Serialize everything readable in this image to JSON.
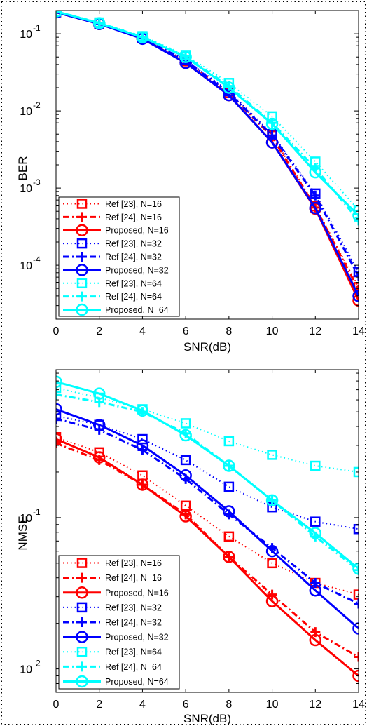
{
  "chart_data": [
    {
      "type": "line",
      "xlabel": "SNR(dB)",
      "ylabel": "BER",
      "yscale": "log",
      "xlim": [
        0,
        14
      ],
      "ylim": [
        2e-05,
        0.2
      ],
      "x_ticks": [
        0,
        2,
        4,
        6,
        8,
        10,
        12,
        14
      ],
      "x_tick_labels": [
        "0",
        "2",
        "4",
        "6",
        "8",
        "10",
        "12",
        "14"
      ],
      "y_ticks": [
        0.0001,
        0.001,
        0.01,
        0.1
      ],
      "y_tick_labels": [
        {
          "base": "10",
          "exp": "-4"
        },
        {
          "base": "10",
          "exp": "-3"
        },
        {
          "base": "10",
          "exp": "-2"
        },
        {
          "base": "10",
          "exp": "-1"
        }
      ],
      "grid": false,
      "legend_position": "bottom-left",
      "x": [
        0,
        2,
        4,
        6,
        8,
        10,
        12,
        14
      ],
      "series": [
        {
          "name": "Ref [23], N=16",
          "color": "#ff0000",
          "line": "dotted",
          "marker": "square",
          "values": [
            0.19,
            0.135,
            0.088,
            0.044,
            0.017,
            0.0048,
            0.00058,
            5.2e-05
          ]
        },
        {
          "name": "Ref [24], N=16",
          "color": "#ff0000",
          "line": "dashdot",
          "marker": "plus",
          "values": [
            0.19,
            0.135,
            0.088,
            0.044,
            0.017,
            0.0046,
            0.00056,
            4.8e-05
          ]
        },
        {
          "name": "Proposed, N=16",
          "color": "#ff0000",
          "line": "solid",
          "marker": "circle",
          "values": [
            0.19,
            0.134,
            0.087,
            0.042,
            0.016,
            0.0039,
            0.00054,
            3.5e-05
          ]
        },
        {
          "name": "Ref [23], N=32",
          "color": "#0000ff",
          "line": "dotted",
          "marker": "square",
          "values": [
            0.19,
            0.136,
            0.089,
            0.046,
            0.018,
            0.005,
            0.00085,
            8.2e-05
          ]
        },
        {
          "name": "Ref [24], N=32",
          "color": "#0000ff",
          "line": "dashdot",
          "marker": "plus",
          "values": [
            0.19,
            0.135,
            0.088,
            0.045,
            0.017,
            0.0048,
            0.0008,
            7.2e-05
          ]
        },
        {
          "name": "Proposed, N=32",
          "color": "#0000ff",
          "line": "solid",
          "marker": "circle",
          "values": [
            0.19,
            0.134,
            0.086,
            0.042,
            0.016,
            0.0039,
            0.00055,
            4e-05
          ]
        },
        {
          "name": "Ref [23], N=64",
          "color": "#00ffff",
          "line": "dotted",
          "marker": "square",
          "values": [
            0.195,
            0.14,
            0.093,
            0.053,
            0.023,
            0.0085,
            0.0022,
            0.00052
          ]
        },
        {
          "name": "Ref [24], N=64",
          "color": "#00ffff",
          "line": "dashdot",
          "marker": "plus",
          "values": [
            0.195,
            0.138,
            0.091,
            0.051,
            0.021,
            0.007,
            0.0018,
            0.00038
          ]
        },
        {
          "name": "Proposed, N=64",
          "color": "#00ffff",
          "line": "solid",
          "marker": "circle",
          "values": [
            0.195,
            0.137,
            0.09,
            0.05,
            0.02,
            0.0068,
            0.0016,
            0.00044
          ]
        }
      ]
    },
    {
      "type": "line",
      "xlabel": "SNR(dB)",
      "ylabel": "NMSE",
      "yscale": "log",
      "xlim": [
        0,
        14
      ],
      "ylim": [
        0.007,
        0.95
      ],
      "x_ticks": [
        0,
        2,
        4,
        6,
        8,
        10,
        12,
        14
      ],
      "x_tick_labels": [
        "0",
        "2",
        "4",
        "6",
        "8",
        "10",
        "12",
        "14"
      ],
      "y_ticks": [
        0.01,
        0.1
      ],
      "y_tick_labels": [
        {
          "base": "10",
          "exp": "-2"
        },
        {
          "base": "10",
          "exp": "-1"
        }
      ],
      "grid": false,
      "legend_position": "bottom-left",
      "x": [
        0,
        2,
        4,
        6,
        8,
        10,
        12,
        14
      ],
      "series": [
        {
          "name": "Ref [23], N=16",
          "color": "#ff0000",
          "line": "dotted",
          "marker": "square",
          "values": [
            0.34,
            0.27,
            0.19,
            0.12,
            0.075,
            0.05,
            0.037,
            0.031
          ]
        },
        {
          "name": "Ref [24], N=16",
          "color": "#ff0000",
          "line": "dashdot",
          "marker": "plus",
          "values": [
            0.31,
            0.24,
            0.165,
            0.105,
            0.055,
            0.031,
            0.0175,
            0.012
          ]
        },
        {
          "name": "Proposed, N=16",
          "color": "#ff0000",
          "line": "solid",
          "marker": "circle",
          "values": [
            0.33,
            0.25,
            0.165,
            0.102,
            0.055,
            0.028,
            0.0155,
            0.009
          ]
        },
        {
          "name": "Ref [23], N=32",
          "color": "#0000ff",
          "line": "dotted",
          "marker": "square",
          "values": [
            0.47,
            0.41,
            0.33,
            0.24,
            0.16,
            0.117,
            0.094,
            0.084
          ]
        },
        {
          "name": "Ref [24], N=32",
          "color": "#0000ff",
          "line": "dashdot",
          "marker": "plus",
          "values": [
            0.45,
            0.38,
            0.28,
            0.18,
            0.105,
            0.063,
            0.037,
            0.027
          ]
        },
        {
          "name": "Proposed, N=32",
          "color": "#0000ff",
          "line": "solid",
          "marker": "circle",
          "values": [
            0.52,
            0.41,
            0.3,
            0.19,
            0.11,
            0.06,
            0.033,
            0.0185
          ]
        },
        {
          "name": "Ref [23], N=64",
          "color": "#00ffff",
          "line": "dotted",
          "marker": "square",
          "values": [
            0.72,
            0.62,
            0.52,
            0.42,
            0.32,
            0.26,
            0.22,
            0.2
          ]
        },
        {
          "name": "Ref [24], N=64",
          "color": "#00ffff",
          "line": "dashdot",
          "marker": "plus",
          "values": [
            0.65,
            0.58,
            0.5,
            0.36,
            0.22,
            0.13,
            0.075,
            0.045
          ]
        },
        {
          "name": "Proposed, N=64",
          "color": "#00ffff",
          "line": "solid",
          "marker": "circle",
          "values": [
            0.79,
            0.66,
            0.51,
            0.35,
            0.22,
            0.13,
            0.079,
            0.046
          ]
        }
      ]
    }
  ]
}
